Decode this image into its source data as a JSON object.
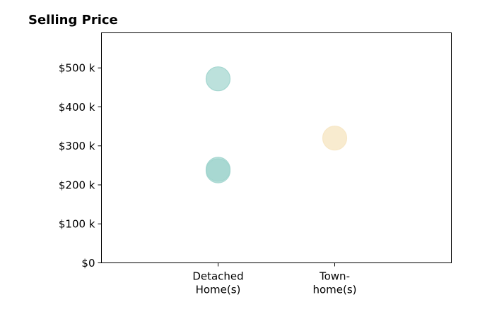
{
  "chart_data": {
    "type": "scatter",
    "title": "Selling Price",
    "xlabel": "",
    "ylabel": "",
    "categories": [
      [
        "Detached",
        "Home(s)"
      ],
      [
        "Town-",
        "home(s)"
      ]
    ],
    "xlim": [
      -0.5,
      2.5
    ],
    "ylim": [
      0,
      590
    ],
    "y_ticks": [
      {
        "value": 0,
        "label": "$0"
      },
      {
        "value": 100,
        "label": "$100 k"
      },
      {
        "value": 200,
        "label": "$200 k"
      },
      {
        "value": 300,
        "label": "$300 k"
      },
      {
        "value": 400,
        "label": "$400 k"
      },
      {
        "value": 500,
        "label": "$500 k"
      }
    ],
    "y_unit": "thousands of dollars",
    "grid": false,
    "points": [
      {
        "x": 0.5,
        "category": "Detached Home(s)",
        "y": 472,
        "color": "#9fd4cd",
        "opacity": 0.7
      },
      {
        "x": 0.5,
        "category": "Detached Home(s)",
        "y": 240,
        "color": "#9fd4cd",
        "opacity": 0.7
      },
      {
        "x": 0.5,
        "category": "Detached Home(s)",
        "y": 236,
        "color": "#9fd4cd",
        "opacity": 0.7
      },
      {
        "x": 1.5,
        "category": "Town-home(s)",
        "y": 320,
        "color": "#f6e6c3",
        "opacity": 0.8
      }
    ],
    "colors": {
      "detached": "#9fd4cd",
      "townhome": "#f6e6c3",
      "axis": "#000000"
    }
  }
}
